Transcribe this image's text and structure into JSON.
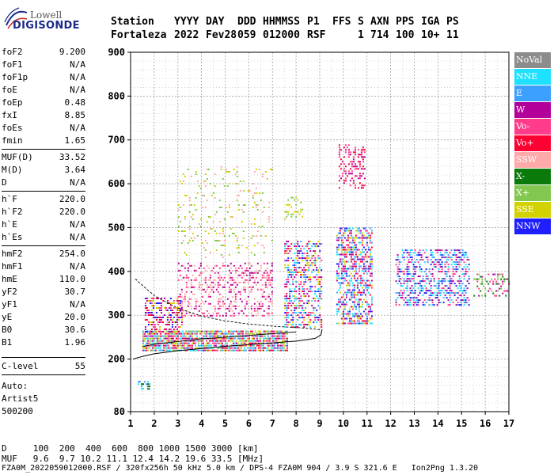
{
  "logo": {
    "brand": "Lowell",
    "product": "DIGISONDE"
  },
  "header": {
    "labels": [
      "Station",
      "YYYY",
      "DAY",
      "DDD",
      "HHMMSS",
      "P1",
      "FFS",
      "S",
      "AXN",
      "PPS",
      "IGA",
      "PS"
    ],
    "values": [
      "Fortaleza",
      "2022",
      "Fev28",
      "059",
      "012000",
      "RSF",
      "",
      "1",
      "714",
      "100",
      "10+",
      "11"
    ]
  },
  "params": {
    "group1": [
      {
        "key": "foF2",
        "value": "9.200"
      },
      {
        "key": "foF1",
        "value": "N/A"
      },
      {
        "key": "foF1p",
        "value": "N/A"
      },
      {
        "key": "foE",
        "value": "N/A"
      },
      {
        "key": "foEp",
        "value": "0.48"
      },
      {
        "key": "fxI",
        "value": "8.85"
      },
      {
        "key": "foEs",
        "value": "N/A"
      },
      {
        "key": "fmin",
        "value": "1.65"
      }
    ],
    "group2": [
      {
        "key": "MUF(D)",
        "value": "33.52"
      },
      {
        "key": "M(D)",
        "value": "3.64"
      },
      {
        "key": "D",
        "value": "N/A"
      }
    ],
    "group3": [
      {
        "key": "h`F",
        "value": "220.0"
      },
      {
        "key": "h`F2",
        "value": "220.0"
      },
      {
        "key": "h`E",
        "value": "N/A"
      },
      {
        "key": "h`Es",
        "value": "N/A"
      }
    ],
    "group4": [
      {
        "key": "hmF2",
        "value": "254.0"
      },
      {
        "key": "hmF1",
        "value": "N/A"
      },
      {
        "key": "hmE",
        "value": "110.0"
      },
      {
        "key": "yF2",
        "value": "30.7"
      },
      {
        "key": "yF1",
        "value": "N/A"
      },
      {
        "key": "yE",
        "value": "20.0"
      },
      {
        "key": "B0",
        "value": "30.6"
      },
      {
        "key": "B1",
        "value": "1.96"
      }
    ],
    "clevel": {
      "key": "C-level",
      "value": "55"
    },
    "auto": [
      "Auto:",
      "Artist5",
      "500200"
    ]
  },
  "legend": [
    {
      "label": "NoVal",
      "color": "#8c8c8c"
    },
    {
      "label": "NNE",
      "color": "#1ee1ff"
    },
    {
      "label": "E",
      "color": "#3ca0ff"
    },
    {
      "label": "W",
      "color": "#b4009b"
    },
    {
      "label": "Vo-",
      "color": "#ff3c8c"
    },
    {
      "label": "Vo+",
      "color": "#ff0032"
    },
    {
      "label": "SSW",
      "color": "#ffaaaa"
    },
    {
      "label": "X-",
      "color": "#0a7a0a"
    },
    {
      "label": "X+",
      "color": "#82c850"
    },
    {
      "label": "SSE",
      "color": "#d2d200"
    },
    {
      "label": "NNW",
      "color": "#1e1eff"
    }
  ],
  "footer": {
    "line1": "D     100  200  400  600  800 1000 1500 3000 [km]",
    "line2": "MUF   9.6  9.7 10.2 11.1 12.4 14.2 19.6 33.5 [MHz]",
    "line3": "FZA0M_2022059012000.RSF / 320fx256h 50 kHz 5.0 km / DPS-4 FZA0M 904 / 3.9 S 321.6 E   Ion2Png 1.3.20"
  },
  "chart_data": {
    "type": "scatter",
    "xlim": [
      1,
      17
    ],
    "ylim": [
      80,
      900
    ],
    "xticks": [
      1,
      2,
      3,
      4,
      5,
      6,
      7,
      8,
      9,
      10,
      11,
      12,
      13,
      14,
      15,
      16,
      17
    ],
    "yticks": [
      80,
      200,
      300,
      400,
      500,
      600,
      700,
      800,
      900
    ],
    "grid": true,
    "legend_position": "right",
    "trace_upper": [
      [
        1.2,
        383
      ],
      [
        1.5,
        368
      ],
      [
        2,
        345
      ],
      [
        2.5,
        330
      ],
      [
        3,
        316
      ],
      [
        4,
        298
      ],
      [
        5,
        287
      ],
      [
        6,
        280
      ],
      [
        7,
        275
      ],
      [
        8,
        272
      ],
      [
        8.5,
        270
      ],
      [
        9,
        267
      ]
    ],
    "trace_lower": [
      [
        1.1,
        200
      ],
      [
        1.5,
        206
      ],
      [
        2,
        212
      ],
      [
        3,
        219
      ],
      [
        4,
        224
      ],
      [
        5,
        229
      ],
      [
        6,
        233
      ],
      [
        7,
        237
      ],
      [
        8,
        241
      ],
      [
        8.8,
        247
      ],
      [
        9.05,
        255
      ],
      [
        9.1,
        268
      ]
    ],
    "trace_mid": [
      [
        1.5,
        228
      ],
      [
        2,
        234
      ],
      [
        3,
        240
      ],
      [
        4,
        246
      ],
      [
        5,
        250
      ],
      [
        6,
        254
      ],
      [
        7,
        258
      ],
      [
        8,
        262
      ]
    ],
    "echo_clusters": [
      {
        "x": [
          1.5,
          7.6
        ],
        "y": [
          220,
          265
        ],
        "density": 0.85,
        "colors": [
          "Vo+",
          "SSE",
          "E",
          "NNE",
          "Vo-",
          "W",
          "X+"
        ]
      },
      {
        "x": [
          1.6,
          3.2
        ],
        "y": [
          260,
          340
        ],
        "density": 0.5,
        "colors": [
          "Vo+",
          "Vo-",
          "W",
          "SSE",
          "NNW"
        ]
      },
      {
        "x": [
          3.0,
          7.0
        ],
        "y": [
          300,
          420
        ],
        "density": 0.3,
        "colors": [
          "W",
          "Vo-",
          "SSW"
        ]
      },
      {
        "x": [
          3.0,
          7.0
        ],
        "y": [
          430,
          640
        ],
        "density": 0.08,
        "colors": [
          "SSE",
          "X+",
          "SSW"
        ]
      },
      {
        "x": [
          7.5,
          9.1
        ],
        "y": [
          270,
          470
        ],
        "density": 0.45,
        "colors": [
          "E",
          "NNE",
          "W",
          "Vo-",
          "Vo+",
          "SSE",
          "NNW"
        ]
      },
      {
        "x": [
          9.7,
          11.2
        ],
        "y": [
          280,
          500
        ],
        "density": 0.55,
        "colors": [
          "NNE",
          "E",
          "NNW",
          "W",
          "Vo-",
          "Vo+",
          "SSE"
        ]
      },
      {
        "x": [
          9.8,
          10.9
        ],
        "y": [
          590,
          690
        ],
        "density": 0.35,
        "colors": [
          "W",
          "Vo-",
          "Vo+"
        ]
      },
      {
        "x": [
          12.2,
          15.3
        ],
        "y": [
          320,
          450
        ],
        "density": 0.45,
        "colors": [
          "NNW",
          "E",
          "NNE",
          "W",
          "Vo-"
        ]
      },
      {
        "x": [
          15.5,
          17.0
        ],
        "y": [
          345,
          395
        ],
        "density": 0.3,
        "colors": [
          "X-",
          "X+",
          "W",
          "Vo-"
        ]
      },
      {
        "x": [
          7.5,
          8.3
        ],
        "y": [
          520,
          570
        ],
        "density": 0.2,
        "colors": [
          "SSE",
          "X+"
        ]
      },
      {
        "x": [
          1.3,
          1.8
        ],
        "y": [
          130,
          150
        ],
        "density": 0.5,
        "colors": [
          "X-",
          "NNE",
          "E"
        ]
      }
    ]
  }
}
